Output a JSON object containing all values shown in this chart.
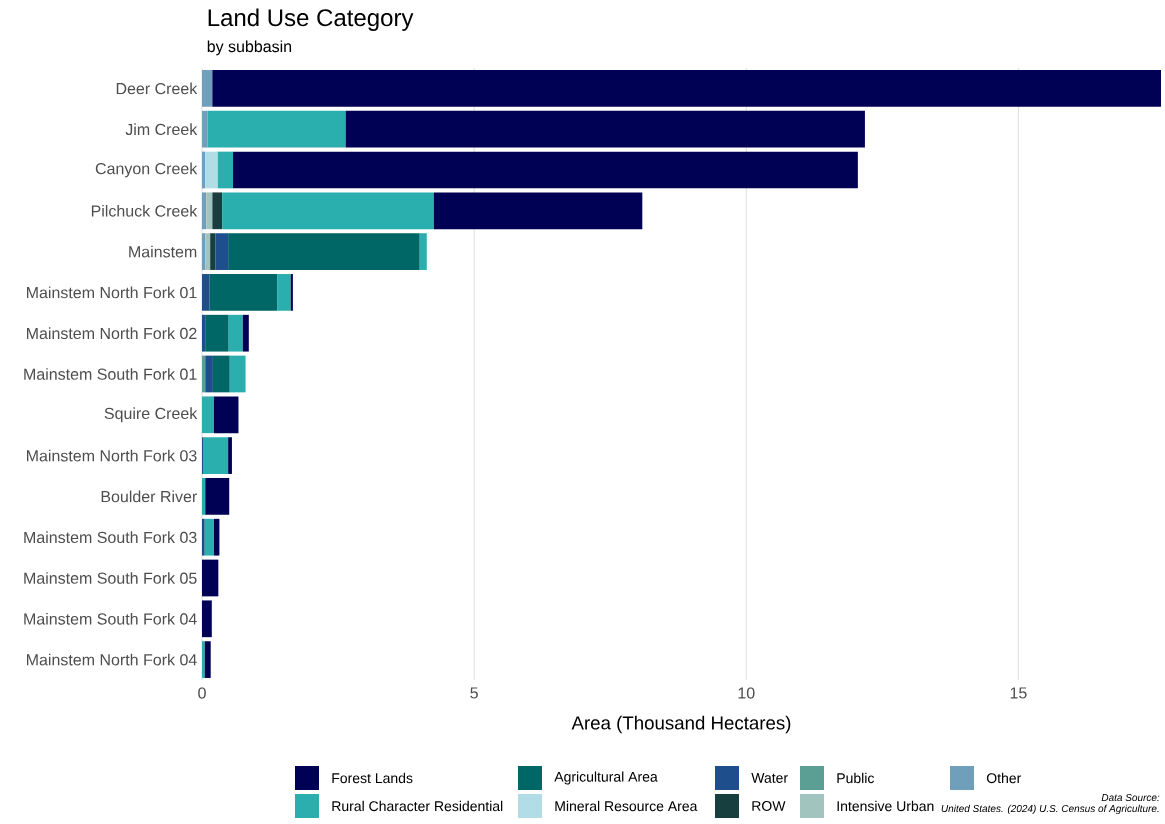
{
  "chart_data": {
    "type": "bar",
    "title": "Land Use Category",
    "subtitle": "by subbasin",
    "xlabel": "Area (Thousand Hectares)",
    "orientation": "horizontal",
    "stacked": true,
    "grid": "x",
    "legend": "bottom",
    "annotations": [
      "Data Source:",
      "United States. (2024) U.S. Census of Agriculture."
    ],
    "categories": [
      "Deer Creek",
      "Jim Creek",
      "Canyon Creek",
      "Pilchuck Creek",
      "Mainstem",
      "Mainstem North Fork  01",
      "Mainstem North Fork  02",
      "Mainstem South Fork  01",
      "Squire Creek",
      "Mainstem North Fork  03",
      "Boulder River",
      "Mainstem South Fork  03",
      "Mainstem South Fork  05",
      "Mainstem South Fork  04",
      "Mainstem North Fork  04"
    ],
    "xlim": [
      0,
      17.62
    ],
    "xticks": [
      0,
      5,
      10,
      15
    ],
    "series": [
      {
        "name": "Other",
        "color": "#6f9fba",
        "values": [
          0.19,
          0.1,
          0.06,
          0.08,
          0.06,
          null,
          null,
          null,
          null,
          null,
          null,
          null,
          null,
          null,
          null
        ]
      },
      {
        "name": "Intensive Urban",
        "color": "#a2c4bf",
        "values": [
          null,
          null,
          null,
          0.11,
          0.09,
          null,
          null,
          null,
          null,
          null,
          null,
          null,
          null,
          null,
          null
        ]
      },
      {
        "name": "Public",
        "color": "#5a9e94",
        "values": [
          null,
          null,
          null,
          null,
          null,
          null,
          null,
          0.06,
          null,
          null,
          null,
          null,
          null,
          null,
          null
        ]
      },
      {
        "name": "ROW",
        "color": "#173f3f",
        "values": [
          null,
          null,
          null,
          0.18,
          0.1,
          null,
          null,
          null,
          null,
          null,
          null,
          null,
          null,
          null,
          null
        ]
      },
      {
        "name": "Water",
        "color": "#1f4e8c",
        "values": [
          null,
          null,
          null,
          null,
          0.23,
          0.14,
          0.07,
          0.14,
          null,
          0.03,
          null,
          0.05,
          null,
          null,
          null
        ]
      },
      {
        "name": "Mineral Resource Area",
        "color": "#b3dde6",
        "values": [
          null,
          null,
          0.23,
          null,
          null,
          null,
          null,
          null,
          null,
          null,
          null,
          null,
          null,
          null,
          null
        ]
      },
      {
        "name": "Agricultural Area",
        "color": "#006666",
        "values": [
          null,
          null,
          null,
          null,
          3.52,
          1.24,
          0.42,
          0.31,
          null,
          null,
          null,
          null,
          null,
          null,
          null
        ]
      },
      {
        "name": "Rural Character Residential",
        "color": "#2aaeae",
        "values": [
          null,
          2.54,
          0.28,
          3.89,
          0.13,
          0.25,
          0.26,
          0.29,
          0.22,
          0.45,
          0.06,
          0.17,
          null,
          null,
          0.05
        ]
      },
      {
        "name": "Forest Lands",
        "color": "#000055",
        "values": [
          17.43,
          9.54,
          11.48,
          3.83,
          null,
          0.04,
          0.11,
          null,
          0.45,
          0.07,
          0.44,
          0.1,
          0.3,
          0.18,
          0.11
        ]
      }
    ]
  }
}
